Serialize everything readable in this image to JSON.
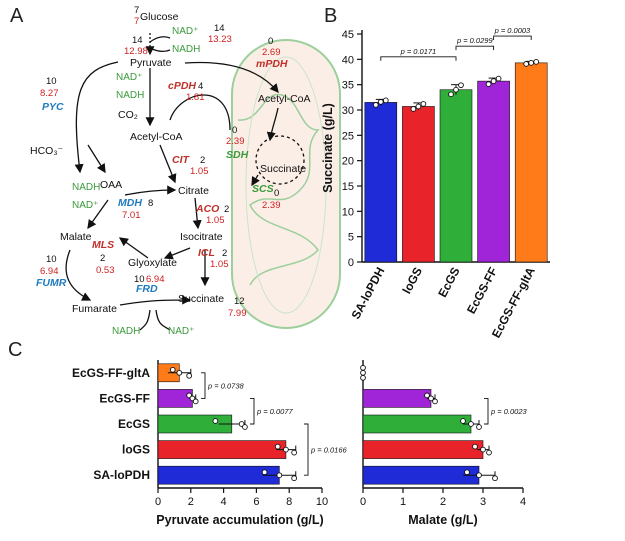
{
  "panels": {
    "a": "A",
    "b": "B",
    "c": "C"
  },
  "pathway": {
    "nodes": [
      {
        "id": "glucose",
        "label": "Glucose"
      },
      {
        "id": "pyruvate",
        "label": "Pyruvate"
      },
      {
        "id": "acetylcoa",
        "label": "Acetyl-CoA"
      },
      {
        "id": "acetylcoa_mito",
        "label": "Acetyl-CoA"
      },
      {
        "id": "succinate_mito",
        "label": "Succinate"
      },
      {
        "id": "hco3",
        "label": "HCO₃⁻"
      },
      {
        "id": "oaa",
        "label": "OAA"
      },
      {
        "id": "citrate",
        "label": "Citrate"
      },
      {
        "id": "malate",
        "label": "Malate"
      },
      {
        "id": "isocitrate",
        "label": "Isocitrate"
      },
      {
        "id": "glyoxylate",
        "label": "Glyoxylate"
      },
      {
        "id": "fumarate",
        "label": "Fumarate"
      },
      {
        "id": "succinate",
        "label": "Succinate"
      },
      {
        "id": "co2",
        "label": "CO₂"
      }
    ],
    "cofactors": [
      {
        "id": "nad_glc",
        "label": "NAD⁺"
      },
      {
        "id": "nadh_glc",
        "label": "NADH"
      },
      {
        "id": "nad_pdh",
        "label": "NAD⁺"
      },
      {
        "id": "nadh_pdh",
        "label": "NADH"
      },
      {
        "id": "nadh_mdh",
        "label": "NADH"
      },
      {
        "id": "nad_mdh",
        "label": "NAD⁺"
      },
      {
        "id": "nadh_frd",
        "label": "NADH"
      },
      {
        "id": "nad_frd",
        "label": "NAD⁺"
      }
    ],
    "enzymes": [
      {
        "id": "pyc",
        "label": "PYC",
        "color": "#1f7bc0"
      },
      {
        "id": "cpdh",
        "label": "cPDH",
        "color": "#c0302a"
      },
      {
        "id": "mpdh",
        "label": "mPDH",
        "color": "#c0302a"
      },
      {
        "id": "sdh",
        "label": "SDH",
        "color": "#3a9a3a"
      },
      {
        "id": "scs",
        "label": "SCS",
        "color": "#3a9a3a"
      },
      {
        "id": "cit",
        "label": "CIT",
        "color": "#c0302a"
      },
      {
        "id": "mdh",
        "label": "MDH",
        "color": "#1f7bc0"
      },
      {
        "id": "aco",
        "label": "ACO",
        "color": "#c0302a"
      },
      {
        "id": "icl",
        "label": "ICL",
        "color": "#c0302a"
      },
      {
        "id": "mls",
        "label": "MLS",
        "color": "#c0302a"
      },
      {
        "id": "fumr",
        "label": "FUMR",
        "color": "#1f7bc0"
      },
      {
        "id": "frd",
        "label": "FRD",
        "color": "#1f7bc0"
      }
    ],
    "numbers": [
      {
        "id": "glc_top",
        "label": "7",
        "red": false
      },
      {
        "id": "glc_bot",
        "label": "7",
        "red": true
      },
      {
        "id": "glcL_top",
        "label": "14",
        "red": false
      },
      {
        "id": "glcL_bot",
        "label": "12.98",
        "red": true
      },
      {
        "id": "glcR_top",
        "label": "14",
        "red": false
      },
      {
        "id": "glcR_bot",
        "label": "13.23",
        "red": true
      },
      {
        "id": "mpdh_top",
        "label": "0",
        "red": false
      },
      {
        "id": "mpdh_bot",
        "label": "2.69",
        "red": true
      },
      {
        "id": "pyc_top",
        "label": "10",
        "red": false
      },
      {
        "id": "pyc_bot",
        "label": "8.27",
        "red": true
      },
      {
        "id": "cpdh_top",
        "label": "4",
        "red": false
      },
      {
        "id": "cpdh_bot",
        "label": "1.81",
        "red": true
      },
      {
        "id": "sdh_top",
        "label": "0",
        "red": false
      },
      {
        "id": "sdh_bot",
        "label": "2.39",
        "red": true
      },
      {
        "id": "scs_top",
        "label": "0",
        "red": false
      },
      {
        "id": "scs_bot",
        "label": "2.39",
        "red": true
      },
      {
        "id": "cit_top",
        "label": "2",
        "red": false
      },
      {
        "id": "cit_bot",
        "label": "1.05",
        "red": true
      },
      {
        "id": "mdh_top",
        "label": "8",
        "red": false
      },
      {
        "id": "mdh_bot",
        "label": "7.01",
        "red": true
      },
      {
        "id": "aco_top",
        "label": "2",
        "red": false
      },
      {
        "id": "aco_bot",
        "label": "1.05",
        "red": true
      },
      {
        "id": "fumr_top",
        "label": "10",
        "red": false
      },
      {
        "id": "fumr_bot",
        "label": "6.94",
        "red": true
      },
      {
        "id": "mls_top",
        "label": "2",
        "red": false
      },
      {
        "id": "mls_bot",
        "label": "0.53",
        "red": true
      },
      {
        "id": "icl_top",
        "label": "2",
        "red": false
      },
      {
        "id": "icl_bot",
        "label": "1.05",
        "red": true
      },
      {
        "id": "frd_top",
        "label": "10",
        "red": false
      },
      {
        "id": "frd_bot",
        "label": "6.94",
        "red": true
      },
      {
        "id": "succ_top",
        "label": "12",
        "red": false
      },
      {
        "id": "succ_bot",
        "label": "7.99",
        "red": true
      }
    ]
  },
  "chart_data": [
    {
      "panel": "B",
      "type": "bar",
      "ylabel": "Succinate (g/L)",
      "ylim": [
        0,
        45
      ],
      "yticks": [
        0,
        5,
        10,
        15,
        20,
        25,
        30,
        35,
        40,
        45
      ],
      "categories": [
        "SA-loPDH",
        "loGS",
        "EcGS",
        "EcGS-FF",
        "EcGS-FF-gltA"
      ],
      "values": [
        31.5,
        30.7,
        34.0,
        35.7,
        39.3
      ],
      "errors": [
        0.6,
        0.7,
        1.0,
        0.6,
        0.3
      ],
      "colors": [
        "#1f2bd6",
        "#e8242a",
        "#2fae3a",
        "#a024d8",
        "#ff7b1a"
      ],
      "points": [
        [
          31.0,
          31.6,
          31.9
        ],
        [
          30.2,
          30.7,
          31.2
        ],
        [
          33.1,
          34.0,
          34.9
        ],
        [
          35.1,
          35.7,
          36.2
        ],
        [
          39.1,
          39.3,
          39.5
        ]
      ],
      "annotations": [
        {
          "from": 0,
          "to": 2,
          "label": "p = 0.0171"
        },
        {
          "from": 2,
          "to": 3,
          "label": "p = 0.0299"
        },
        {
          "from": 3,
          "to": 4,
          "label": "p = 0.0003"
        }
      ]
    },
    {
      "panel": "C-left",
      "type": "bar",
      "orientation": "horizontal",
      "xlabel": "Pyruvate accumulation (g/L)",
      "xlim": [
        0,
        10
      ],
      "xticks": [
        0,
        2,
        4,
        6,
        8,
        10
      ],
      "categories": [
        "EcGS-FF-gltA",
        "EcGS-FF",
        "EcGS",
        "loGS",
        "SA-loPDH"
      ],
      "values": [
        1.3,
        2.1,
        4.5,
        7.8,
        7.4
      ],
      "errors": [
        0.7,
        0.2,
        0.8,
        0.6,
        1.0
      ],
      "colors": [
        "#ff7b1a",
        "#a024d8",
        "#2fae3a",
        "#e8242a",
        "#1f2bd6"
      ],
      "points": [
        [
          0.9,
          1.3,
          1.9
        ],
        [
          1.9,
          2.1,
          2.3
        ],
        [
          3.5,
          5.1,
          5.3
        ],
        [
          7.3,
          7.8,
          8.3
        ],
        [
          6.5,
          7.4,
          8.3
        ]
      ],
      "annotations": [
        {
          "from": 0,
          "to": 1,
          "label": "p = 0.0738"
        },
        {
          "from": 1,
          "to": 2,
          "label": "p = 0.0077"
        },
        {
          "from": 2,
          "to": 4,
          "label": "p = 0.0166"
        }
      ]
    },
    {
      "panel": "C-right",
      "type": "bar",
      "orientation": "horizontal",
      "xlabel": "Malate (g/L)",
      "xlim": [
        0,
        4
      ],
      "xticks": [
        0,
        1,
        2,
        3,
        4
      ],
      "categories": [
        "EcGS-FF-gltA",
        "EcGS-FF",
        "EcGS",
        "loGS",
        "SA-loPDH"
      ],
      "values": [
        0.0,
        1.7,
        2.7,
        3.0,
        2.9
      ],
      "errors": [
        0.0,
        0.1,
        0.2,
        0.15,
        0.4
      ],
      "colors": [
        "#ff7b1a",
        "#a024d8",
        "#2fae3a",
        "#e8242a",
        "#1f2bd6"
      ],
      "points": [
        [
          0.0,
          0.0,
          0.0
        ],
        [
          1.6,
          1.7,
          1.8
        ],
        [
          2.5,
          2.7,
          2.9
        ],
        [
          2.8,
          3.0,
          3.15
        ],
        [
          2.6,
          2.9,
          3.3
        ]
      ],
      "annotations": [
        {
          "from": 1,
          "to": 2,
          "label": "p = 0.0023"
        }
      ]
    }
  ]
}
